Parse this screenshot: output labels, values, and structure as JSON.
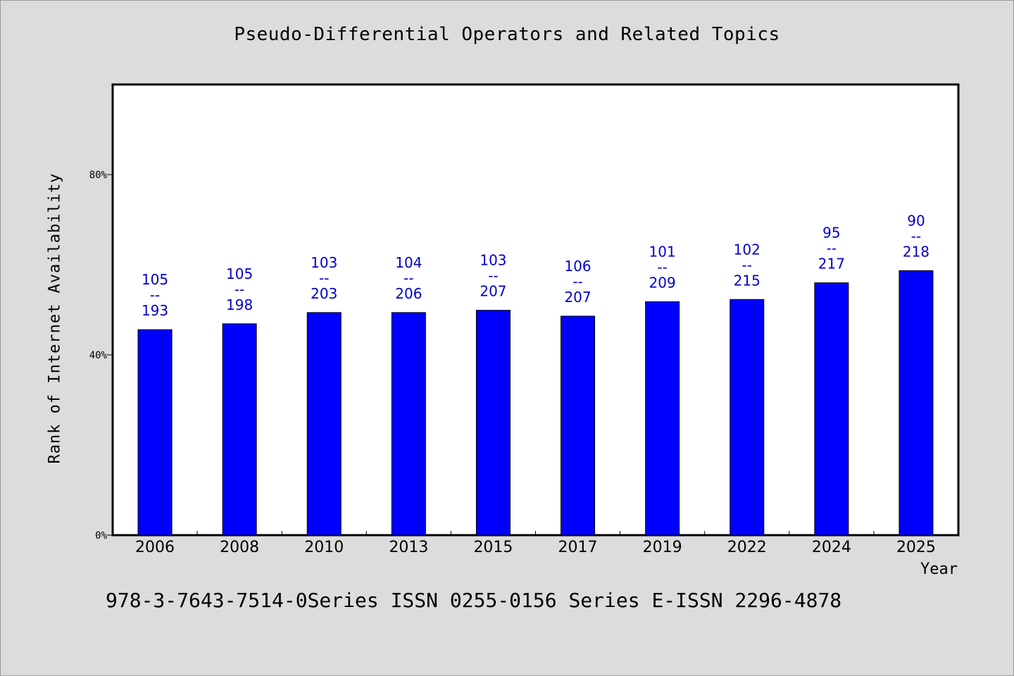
{
  "title": "Pseudo-Differential Operators and Related Topics",
  "footer": "978-3-7643-7514-0Series ISSN 0255-0156 Series E-ISSN 2296-4878",
  "colors": {
    "bar": "#0000ff",
    "label": "#0000cc",
    "background": "#dcdcdc",
    "plot_background": "#ffffff"
  },
  "chart_data": {
    "type": "bar",
    "title": "Pseudo-Differential Operators and Related Topics",
    "xlabel": "Year",
    "ylabel": "Rank of Internet Availability",
    "ylim": [
      0,
      100
    ],
    "yticks": [
      0,
      40,
      80
    ],
    "ytick_labels": [
      "0%",
      "40%",
      "80%"
    ],
    "categories": [
      "2006",
      "2008",
      "2010",
      "2013",
      "2015",
      "2017",
      "2019",
      "2022",
      "2024",
      "2025"
    ],
    "values": [
      45.6,
      46.9,
      49.4,
      49.4,
      49.9,
      48.6,
      51.8,
      52.3,
      56.0,
      58.7
    ],
    "labels": [
      [
        "105",
        "--",
        "193"
      ],
      [
        "105",
        "--",
        "198"
      ],
      [
        "103",
        "--",
        "203"
      ],
      [
        "104",
        "--",
        "206"
      ],
      [
        "103",
        "--",
        "207"
      ],
      [
        "106",
        "--",
        "207"
      ],
      [
        "101",
        "--",
        "209"
      ],
      [
        "102",
        "--",
        "215"
      ],
      [
        "95",
        "--",
        "217"
      ],
      [
        "90",
        "--",
        "218"
      ]
    ],
    "grid": false,
    "legend": "none"
  }
}
